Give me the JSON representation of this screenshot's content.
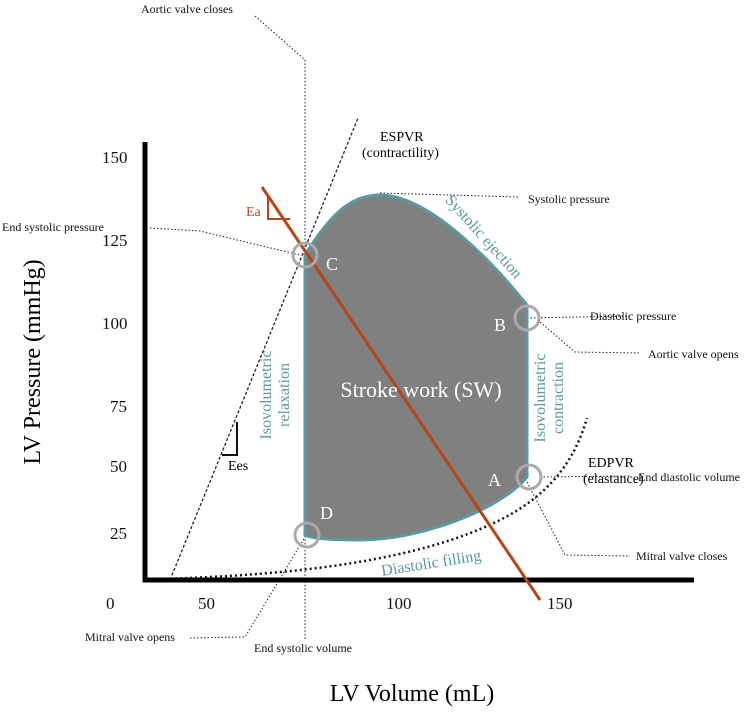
{
  "axes": {
    "y_title": "LV Pressure (mmHg)",
    "x_title": "LV Volume (mL)",
    "y_ticks": [
      "150",
      "125",
      "100",
      "75",
      "50",
      "25"
    ],
    "x_ticks": [
      "0",
      "50",
      "100",
      "150"
    ]
  },
  "loop": {
    "center_label": "Stroke work (SW)",
    "phases": [
      "Systolic ejection",
      "Isovolumetric",
      "contraction",
      "Isovolumetric",
      "relaxation",
      "Diastolic filling"
    ],
    "points": [
      "A",
      "B",
      "C",
      "D"
    ]
  },
  "relations": {
    "espvr": "ESPVR",
    "espvr_note": "(contractility)",
    "edpvr": "EDPVR",
    "edpvr_note": "(elastance)",
    "ea": "Ea",
    "ees": "Ees"
  },
  "annotations": [
    "Aortic valve closes",
    "Systolic pressure",
    "End systolic pressure",
    "Diastolic pressure",
    "Aortic valve opens",
    "End diastolic volume",
    "Mitral valve closes",
    "Mitral valve opens",
    "End systolic volume"
  ]
}
